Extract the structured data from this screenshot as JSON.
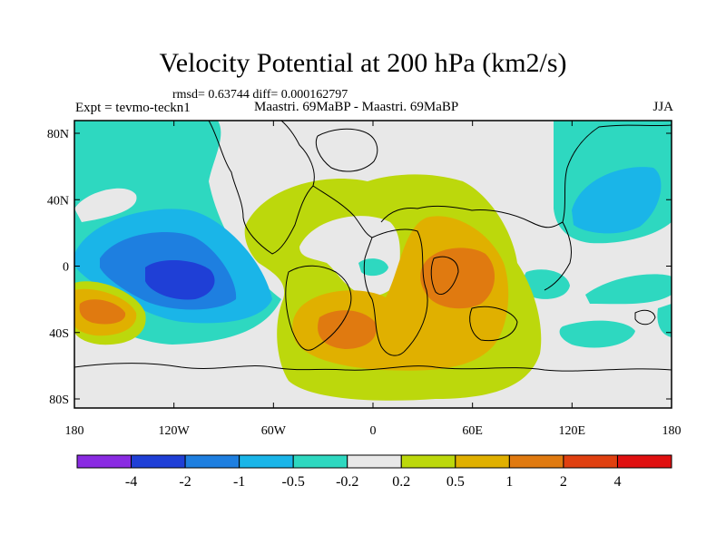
{
  "title": "Velocity Potential at 200 hPa (km2/s)",
  "stats": "rmsd= 0.63744 diff= 0.000162797",
  "expt": "Expt = tevmo-teckn1",
  "case": "Maastri.  69MaBP - Maastri.  69MaBP",
  "season": "JJA",
  "x_ticks": [
    "180",
    "120W",
    "60W",
    "0",
    "60E",
    "120E",
    "180"
  ],
  "y_ticks": [
    "80N",
    "40N",
    "0",
    "40S",
    "80S"
  ],
  "colorbar": {
    "colors": [
      "#8a2be2",
      "#1f3fd6",
      "#1e7fe0",
      "#1ab5e8",
      "#2ed8c0",
      "#e8e8e8",
      "#bcd80c",
      "#e0b000",
      "#e07a10",
      "#e04010",
      "#e01010"
    ],
    "labels": [
      "-4",
      "-2",
      "-1",
      "-0.5",
      "-0.2",
      "0.2",
      "0.5",
      "1",
      "2",
      "4"
    ]
  },
  "map_colors": {
    "neutral": "#e8e8e8",
    "cyan": "#2ed8c0",
    "lightblue": "#1ab5e8",
    "blue": "#1e7fe0",
    "darkblue": "#1f3fd6",
    "green": "#bcd80c",
    "yellow": "#e0b000",
    "orange": "#e07a10",
    "coast": "#000000"
  }
}
